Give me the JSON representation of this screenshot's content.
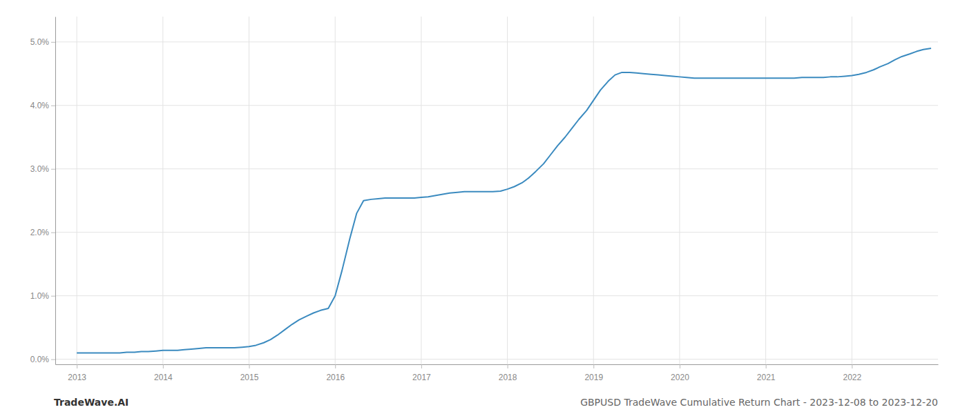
{
  "chart_data": {
    "type": "line",
    "title": "GBPUSD TradeWave Cumulative Return Chart - 2023-12-08 to 2023-12-20",
    "annotations": [
      "TradeWave.AI"
    ],
    "color": "#3a8abf",
    "x": [
      2013.0,
      2013.08,
      2013.17,
      2013.25,
      2013.33,
      2013.42,
      2013.5,
      2013.58,
      2013.67,
      2013.75,
      2013.83,
      2013.92,
      2014.0,
      2014.08,
      2014.17,
      2014.25,
      2014.33,
      2014.42,
      2014.5,
      2014.58,
      2014.67,
      2014.75,
      2014.83,
      2014.92,
      2015.0,
      2015.08,
      2015.17,
      2015.25,
      2015.33,
      2015.42,
      2015.5,
      2015.58,
      2015.67,
      2015.75,
      2015.83,
      2015.92,
      2016.0,
      2016.08,
      2016.17,
      2016.25,
      2016.33,
      2016.42,
      2016.5,
      2016.58,
      2016.67,
      2016.75,
      2016.83,
      2016.92,
      2017.0,
      2017.08,
      2017.17,
      2017.25,
      2017.33,
      2017.42,
      2017.5,
      2017.58,
      2017.67,
      2017.75,
      2017.83,
      2017.92,
      2018.0,
      2018.08,
      2018.17,
      2018.25,
      2018.33,
      2018.42,
      2018.5,
      2018.58,
      2018.67,
      2018.75,
      2018.83,
      2018.92,
      2019.0,
      2019.08,
      2019.17,
      2019.25,
      2019.33,
      2019.42,
      2019.5,
      2019.58,
      2019.67,
      2019.75,
      2019.83,
      2019.92,
      2020.0,
      2020.08,
      2020.17,
      2020.25,
      2020.33,
      2020.42,
      2020.5,
      2020.58,
      2020.67,
      2020.75,
      2020.83,
      2020.92,
      2021.0,
      2021.08,
      2021.17,
      2021.25,
      2021.33,
      2021.42,
      2021.5,
      2021.58,
      2021.67,
      2021.75,
      2021.83,
      2021.92,
      2022.0,
      2022.08,
      2022.17,
      2022.25,
      2022.33,
      2022.42,
      2022.5,
      2022.58,
      2022.67,
      2022.75,
      2022.83,
      2022.92
    ],
    "values": [
      0.001,
      0.001,
      0.001,
      0.001,
      0.001,
      0.001,
      0.001,
      0.0011,
      0.0011,
      0.0012,
      0.0012,
      0.0013,
      0.0014,
      0.0014,
      0.0014,
      0.0015,
      0.0016,
      0.0017,
      0.0018,
      0.0018,
      0.0018,
      0.0018,
      0.0018,
      0.0019,
      0.002,
      0.0022,
      0.0026,
      0.0031,
      0.0038,
      0.0047,
      0.0055,
      0.0062,
      0.0068,
      0.0073,
      0.0077,
      0.008,
      0.01,
      0.014,
      0.019,
      0.023,
      0.025,
      0.0252,
      0.0253,
      0.0254,
      0.0254,
      0.0254,
      0.0254,
      0.0254,
      0.0255,
      0.0256,
      0.0258,
      0.026,
      0.0262,
      0.0263,
      0.0264,
      0.0264,
      0.0264,
      0.0264,
      0.0264,
      0.0265,
      0.0268,
      0.0272,
      0.0278,
      0.0286,
      0.0296,
      0.0308,
      0.0322,
      0.0336,
      0.035,
      0.0364,
      0.0378,
      0.0392,
      0.0408,
      0.0424,
      0.0438,
      0.0448,
      0.0452,
      0.0452,
      0.0451,
      0.045,
      0.0449,
      0.0448,
      0.0447,
      0.0446,
      0.0445,
      0.0444,
      0.0443,
      0.0443,
      0.0443,
      0.0443,
      0.0443,
      0.0443,
      0.0443,
      0.0443,
      0.0443,
      0.0443,
      0.0443,
      0.0443,
      0.0443,
      0.0443,
      0.0443,
      0.0444,
      0.0444,
      0.0444,
      0.0444,
      0.0445,
      0.0445,
      0.0446,
      0.0447,
      0.0449,
      0.0452,
      0.0456,
      0.0461,
      0.0466,
      0.0472,
      0.0477,
      0.0481,
      0.0485,
      0.0488,
      0.049
    ],
    "xlim": [
      2012.75,
      2023.0
    ],
    "ylim": [
      -0.0008,
      0.054
    ],
    "xticks": [
      2013,
      2014,
      2015,
      2016,
      2017,
      2018,
      2019,
      2020,
      2021,
      2022
    ],
    "yticks": [
      {
        "value": 0.0,
        "label": "0.0%"
      },
      {
        "value": 0.01,
        "label": "1.0%"
      },
      {
        "value": 0.02,
        "label": "2.0%"
      },
      {
        "value": 0.03,
        "label": "3.0%"
      },
      {
        "value": 0.04,
        "label": "4.0%"
      },
      {
        "value": 0.05,
        "label": "5.0%"
      }
    ],
    "grid": true
  }
}
